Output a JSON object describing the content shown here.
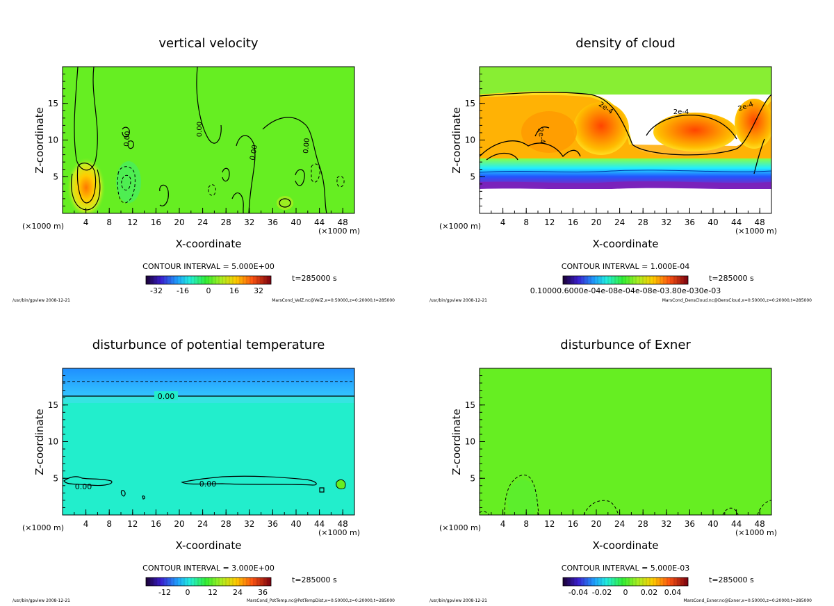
{
  "chart_data": [
    {
      "type": "contour",
      "title": "vertical velocity",
      "xlabel": "X-coordinate",
      "ylabel": "Z-coordinate",
      "x_unit_left": "(×1000 m)",
      "x_unit_right": "(×1000 m)",
      "xlim": [
        0,
        50
      ],
      "ylim": [
        0,
        20
      ],
      "x_ticks": [
        4,
        8,
        12,
        16,
        20,
        24,
        28,
        32,
        36,
        40,
        44,
        48
      ],
      "y_ticks": [
        5,
        10,
        15
      ],
      "contour_interval_text": "CONTOUR INTERVAL = 5.000E+00",
      "time_text": "t=285000 s",
      "colorbar_ticks": [
        "-32",
        "-16",
        "0",
        "16",
        "32"
      ],
      "footer_left": "/usr/bin/gpview  2008-12-21",
      "footer_right": "MarsCond_VelZ.nc@VelZ,x=0:50000,z=0:20000,t=285000",
      "contour_labels": [
        "0.00",
        "0.00",
        "0.00",
        "0.00"
      ],
      "background_color": "#66ee22"
    },
    {
      "type": "contour",
      "title": "density of cloud",
      "xlabel": "X-coordinate",
      "ylabel": "Z-coordinate",
      "x_unit_left": "(×1000 m)",
      "x_unit_right": "(×1000 m)",
      "xlim": [
        0,
        50
      ],
      "ylim": [
        0,
        20
      ],
      "x_ticks": [
        4,
        8,
        12,
        16,
        20,
        24,
        28,
        32,
        36,
        40,
        44,
        48
      ],
      "y_ticks": [
        5,
        10,
        15
      ],
      "contour_interval_text": "CONTOUR INTERVAL = 1.000E-04",
      "time_text": "t=285000 s",
      "colorbar_ticks_text": "0.10000.6000e-04e-08e-04e-08e-03.80e-030e-03",
      "footer_left": "/usr/bin/gpview  2008-12-21",
      "footer_right": "MarsCond_DensCloud.nc@DensCloud,x=0:50000,z=0:20000,t=285000",
      "contour_labels": [
        "2e-4",
        "2e-4",
        "2e-4",
        "2e-4"
      ],
      "background_color": "#66ee22"
    },
    {
      "type": "contour",
      "title": "disturbunce of potential temperature",
      "xlabel": "X-coordinate",
      "ylabel": "Z-coordinate",
      "x_unit_left": "(×1000 m)",
      "x_unit_right": "(×1000 m)",
      "xlim": [
        0,
        50
      ],
      "ylim": [
        0,
        20
      ],
      "x_ticks": [
        4,
        8,
        12,
        16,
        20,
        24,
        28,
        32,
        36,
        40,
        44,
        48
      ],
      "y_ticks": [
        5,
        10,
        15
      ],
      "contour_interval_text": "CONTOUR INTERVAL = 3.000E+00",
      "time_text": "t=285000 s",
      "colorbar_ticks": [
        "-12",
        "0",
        "12",
        "24",
        "36"
      ],
      "footer_left": "/usr/bin/gpview  2008-12-21",
      "footer_right": "MarsCond_PotTemp.nc@PotTempDist,x=0:50000,z=0:20000,t=285000",
      "contour_labels": [
        "0.00",
        "0.00",
        "0.00"
      ],
      "background_color": "#22eecc"
    },
    {
      "type": "contour",
      "title": "disturbunce of Exner",
      "xlabel": "X-coordinate",
      "ylabel": "Z-coordinate",
      "x_unit_left": "(×1000 m)",
      "x_unit_right": "(×1000 m)",
      "xlim": [
        0,
        50
      ],
      "ylim": [
        0,
        20
      ],
      "x_ticks": [
        4,
        8,
        12,
        16,
        20,
        24,
        28,
        32,
        36,
        40,
        44,
        48
      ],
      "y_ticks": [
        5,
        10,
        15
      ],
      "contour_interval_text": "CONTOUR INTERVAL = 5.000E-03",
      "time_text": "t=285000 s",
      "colorbar_ticks": [
        "-0.04",
        "-0.02",
        "0",
        "0.02",
        "0.04"
      ],
      "footer_left": "/usr/bin/gpview  2008-12-21",
      "footer_right": "MarsCond_Exner.nc@Exner,x=0:50000,z=0:20000,t=285000",
      "contour_labels": [],
      "background_color": "#66ee22"
    }
  ]
}
